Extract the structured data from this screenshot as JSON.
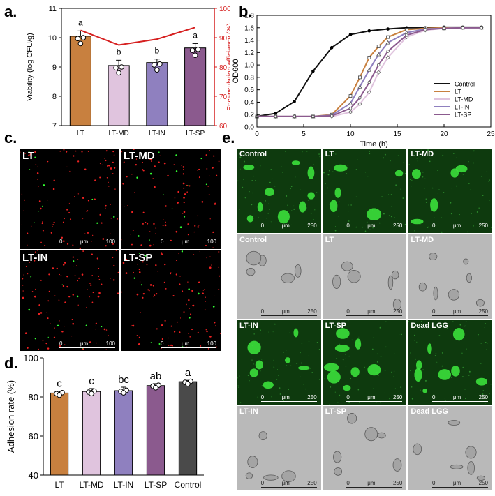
{
  "panel_labels": {
    "a": "a.",
    "b": "b.",
    "c": "c.",
    "d": "d.",
    "e": "e."
  },
  "colors": {
    "LT": "#C8803F",
    "LT-MD": "#E0C4DE",
    "LT-IN": "#8F80BF",
    "LT-SP": "#8B5A8E",
    "Control": "#4A4A4A",
    "efficiency_line": "#D62020",
    "control_curve": "#111111"
  },
  "chart_data": [
    {
      "id": "a",
      "type": "bar",
      "categories": [
        "LT",
        "LT-MD",
        "LT-IN",
        "LT-SP"
      ],
      "series": [
        {
          "values": [
            10.05,
            9.05,
            9.15,
            9.65
          ],
          "errors": [
            0.18,
            0.18,
            0.12,
            0.15
          ],
          "letters": [
            "a",
            "b",
            "b",
            "a"
          ]
        }
      ],
      "secondary_series": {
        "values": [
          92.5,
          87.5,
          89.5,
          93.5
        ]
      },
      "xlabel": "",
      "ylabel": "Viability (log CFU/g)",
      "y2label": "Encapsulation efficiency (%)",
      "ylim": [
        7,
        11
      ],
      "y2lim": [
        60,
        100
      ],
      "yticks": [
        "7",
        "8",
        "9",
        "10",
        "11"
      ],
      "y2ticks": [
        "60",
        "70",
        "80",
        "90",
        "100"
      ]
    },
    {
      "id": "b",
      "type": "line",
      "xlabel": "Time (h)",
      "ylabel": "OD600",
      "xlim": [
        0,
        25
      ],
      "ylim": [
        0,
        1.8
      ],
      "xticks": [
        "0",
        "5",
        "10",
        "15",
        "20",
        "25"
      ],
      "yticks": [
        "0.0",
        "0.2",
        "0.4",
        "0.6",
        "0.8",
        "1.0",
        "1.2",
        "1.4",
        "1.6",
        "1.8"
      ],
      "legend_position": "bottom-right",
      "series": [
        {
          "name": "Control",
          "x": [
            0,
            2,
            4,
            6,
            8,
            10,
            12,
            14,
            16,
            18,
            20,
            22,
            24
          ],
          "y": [
            0.17,
            0.22,
            0.41,
            0.9,
            1.28,
            1.49,
            1.55,
            1.58,
            1.6,
            1.6,
            1.61,
            1.61,
            1.61
          ]
        },
        {
          "name": "LT",
          "x": [
            0,
            2,
            4,
            6,
            8,
            10,
            11,
            12,
            13,
            14,
            16,
            18,
            20,
            22,
            24
          ],
          "y": [
            0.17,
            0.17,
            0.17,
            0.17,
            0.2,
            0.5,
            0.8,
            1.12,
            1.3,
            1.45,
            1.57,
            1.59,
            1.6,
            1.6,
            1.6
          ]
        },
        {
          "name": "LT-MD",
          "x": [
            0,
            2,
            4,
            6,
            8,
            10,
            11,
            12,
            13,
            14,
            16,
            18,
            20,
            22,
            24
          ],
          "y": [
            0.17,
            0.17,
            0.17,
            0.17,
            0.17,
            0.24,
            0.37,
            0.56,
            0.88,
            1.12,
            1.45,
            1.56,
            1.59,
            1.6,
            1.6
          ]
        },
        {
          "name": "LT-IN",
          "x": [
            0,
            2,
            4,
            6,
            8,
            10,
            11,
            12,
            13,
            14,
            16,
            18,
            20,
            22,
            24
          ],
          "y": [
            0.17,
            0.17,
            0.17,
            0.17,
            0.19,
            0.38,
            0.65,
            0.92,
            1.17,
            1.36,
            1.52,
            1.58,
            1.59,
            1.6,
            1.6
          ]
        },
        {
          "name": "LT-SP",
          "x": [
            0,
            2,
            4,
            6,
            8,
            10,
            11,
            12,
            13,
            14,
            16,
            18,
            20,
            22,
            24
          ],
          "y": [
            0.17,
            0.17,
            0.17,
            0.17,
            0.18,
            0.3,
            0.47,
            0.72,
            1.0,
            1.22,
            1.48,
            1.57,
            1.59,
            1.6,
            1.6
          ]
        }
      ]
    },
    {
      "id": "d",
      "type": "bar",
      "categories": [
        "LT",
        "LT-MD",
        "LT-IN",
        "LT-SP",
        "Control"
      ],
      "series": [
        {
          "values": [
            82.0,
            82.8,
            83.2,
            85.8,
            87.8
          ],
          "errors": [
            1.0,
            1.5,
            1.8,
            1.0,
            0.7
          ],
          "letters": [
            "c",
            "c",
            "bc",
            "ab",
            "a"
          ]
        }
      ],
      "xlabel": "",
      "ylabel": "Adhesion rate (%)",
      "ylim": [
        40,
        100
      ],
      "yticks": [
        "40",
        "60",
        "80",
        "100"
      ]
    }
  ],
  "micrographs_c": {
    "tiles": [
      {
        "label": "LT",
        "scale_ticks": [
          "0",
          "μm",
          "100"
        ]
      },
      {
        "label": "LT-MD",
        "scale_ticks": [
          "0",
          "μm",
          "100"
        ]
      },
      {
        "label": "LT-IN",
        "scale_ticks": [
          "0",
          "μm",
          "100"
        ]
      },
      {
        "label": "LT-SP",
        "scale_ticks": [
          "0",
          "μm",
          "100"
        ]
      }
    ]
  },
  "micrographs_e": {
    "tiles": [
      {
        "label": "Control",
        "kind": "fluor",
        "scale_ticks": [
          "0",
          "μm",
          "250"
        ]
      },
      {
        "label": "LT",
        "kind": "fluor",
        "scale_ticks": [
          "0",
          "μm",
          "250"
        ]
      },
      {
        "label": "LT-MD",
        "kind": "fluor",
        "scale_ticks": [
          "0",
          "μm",
          "250"
        ]
      },
      {
        "label": "Control",
        "kind": "bright",
        "scale_ticks": [
          "0",
          "μm",
          "250"
        ]
      },
      {
        "label": "LT",
        "kind": "bright",
        "scale_ticks": [
          "0",
          "μm",
          "250"
        ]
      },
      {
        "label": "LT-MD",
        "kind": "bright",
        "scale_ticks": [
          "0",
          "μm",
          "250"
        ]
      },
      {
        "label": "LT-IN",
        "kind": "fluor",
        "scale_ticks": [
          "0",
          "μm",
          "250"
        ]
      },
      {
        "label": "LT-SP",
        "kind": "fluor",
        "scale_ticks": [
          "0",
          "μm",
          "250"
        ]
      },
      {
        "label": "Dead LGG",
        "kind": "fluor",
        "scale_ticks": [
          "0",
          "μm",
          "250"
        ]
      },
      {
        "label": "LT-IN",
        "kind": "bright",
        "scale_ticks": [
          "0",
          "μm",
          "250"
        ]
      },
      {
        "label": "LT-SP",
        "kind": "bright",
        "scale_ticks": [
          "0",
          "μm",
          "250"
        ]
      },
      {
        "label": "Dead LGG",
        "kind": "bright",
        "scale_ticks": [
          "0",
          "μm",
          "250"
        ]
      }
    ]
  }
}
